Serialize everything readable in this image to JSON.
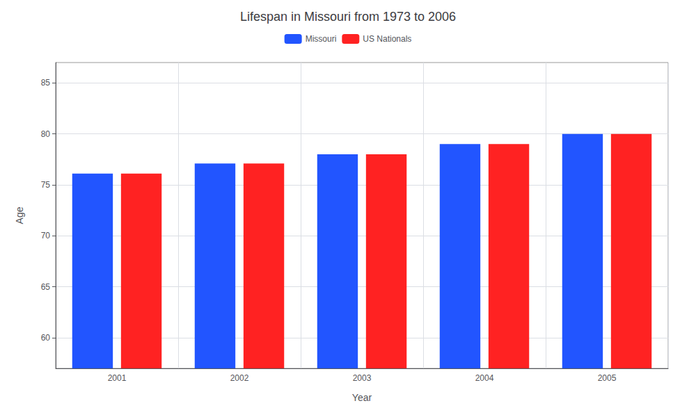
{
  "chart_data": {
    "type": "bar",
    "title": "Lifespan in Missouri from 1973 to 2006",
    "xlabel": "Year",
    "ylabel": "Age",
    "categories": [
      "2001",
      "2002",
      "2003",
      "2004",
      "2005"
    ],
    "series": [
      {
        "name": "Missouri",
        "color": "#2255ff",
        "values": [
          76.1,
          77.1,
          78.0,
          79.0,
          80.0
        ]
      },
      {
        "name": "US Nationals",
        "color": "#ff2222",
        "values": [
          76.1,
          77.1,
          78.0,
          79.0,
          80.0
        ]
      }
    ],
    "ylim": [
      57,
      87
    ],
    "yticks": [
      60,
      65,
      70,
      75,
      80,
      85
    ],
    "grid": true,
    "legend": "top"
  }
}
